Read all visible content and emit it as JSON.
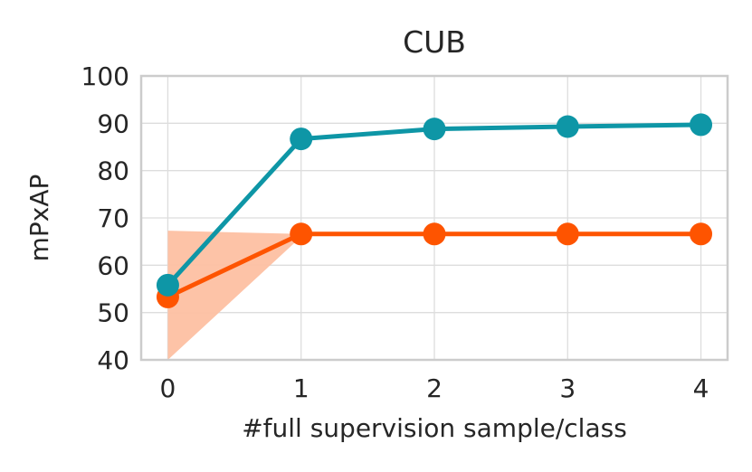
{
  "chart_data": {
    "type": "line",
    "title": "CUB",
    "xlabel": "#full supervision sample/class",
    "ylabel": "mPxAP",
    "x": [
      0,
      1,
      2,
      3,
      4
    ],
    "x_tick_labels": [
      "0",
      "1",
      "2",
      "3",
      "4"
    ],
    "y_ticks": [
      40,
      50,
      60,
      70,
      80,
      90,
      100
    ],
    "y_tick_labels": [
      "40",
      "50",
      "60",
      "70",
      "80",
      "90",
      "100"
    ],
    "xlim": [
      -0.2,
      4.2
    ],
    "ylim": [
      40,
      100
    ],
    "grid": true,
    "series": [
      {
        "color": "#0e96a6",
        "values": [
          55.8,
          86.7,
          88.8,
          89.3,
          89.7
        ]
      },
      {
        "color": "#fe5400",
        "values": [
          53.3,
          66.6,
          66.6,
          66.6,
          66.6
        ],
        "band": {
          "color": "#fdc0a2",
          "x": [
            0,
            1
          ],
          "lower": [
            40.0,
            66.0
          ],
          "upper": [
            67.3,
            66.6
          ]
        }
      }
    ]
  }
}
